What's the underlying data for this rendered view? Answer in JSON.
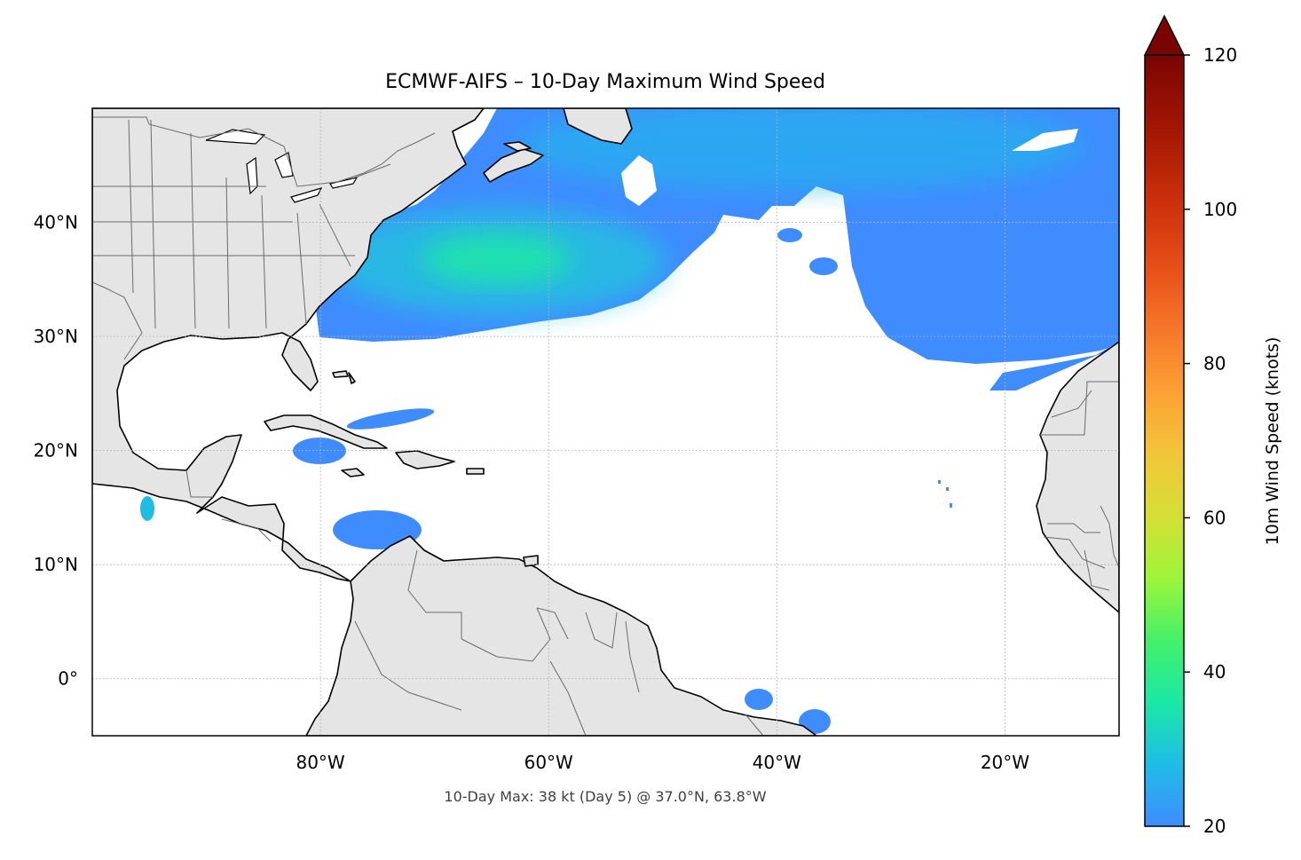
{
  "title": "ECMWF-AIFS – 10-Day Maximum Wind Speed",
  "footer": "10-Day Max: 38 kt (Day 5) @ 37.0°N, 63.8°W",
  "map": {
    "lon_range": [
      -100,
      -10
    ],
    "lat_range": [
      -5,
      50
    ],
    "x_ticks": [
      {
        "value": -80,
        "label": "80°W"
      },
      {
        "value": -60,
        "label": "60°W"
      },
      {
        "value": -40,
        "label": "40°W"
      },
      {
        "value": -20,
        "label": "20°W"
      }
    ],
    "y_ticks": [
      {
        "value": 40,
        "label": "40°N"
      },
      {
        "value": 30,
        "label": "30°N"
      },
      {
        "value": 20,
        "label": "20°N"
      },
      {
        "value": 10,
        "label": "10°N"
      },
      {
        "value": 0,
        "label": "0°"
      }
    ],
    "gridlines": true,
    "land_color": "#e5e5e5",
    "ocean_color": "#ffffff",
    "coastline_color": "#000000",
    "border_color": "#6b6b6b"
  },
  "colorbar": {
    "label": "10m Wind Speed (knots)",
    "range": [
      20,
      120
    ],
    "extend": "max",
    "ticks": [
      {
        "value": 20,
        "label": "20"
      },
      {
        "value": 40,
        "label": "40"
      },
      {
        "value": 60,
        "label": "60"
      },
      {
        "value": 80,
        "label": "80"
      },
      {
        "value": 100,
        "label": "100"
      },
      {
        "value": 120,
        "label": "120"
      }
    ],
    "colors": [
      {
        "value": 20,
        "color": "#3f8cff"
      },
      {
        "value": 28,
        "color": "#1fbde6"
      },
      {
        "value": 36,
        "color": "#1be8a6"
      },
      {
        "value": 44,
        "color": "#44f06a"
      },
      {
        "value": 52,
        "color": "#9cf53a"
      },
      {
        "value": 60,
        "color": "#d4e035"
      },
      {
        "value": 68,
        "color": "#f2c63a"
      },
      {
        "value": 76,
        "color": "#fca235"
      },
      {
        "value": 84,
        "color": "#f7782a"
      },
      {
        "value": 92,
        "color": "#e85118"
      },
      {
        "value": 100,
        "color": "#cf330c"
      },
      {
        "value": 110,
        "color": "#a51704"
      },
      {
        "value": 120,
        "color": "#7a0403"
      }
    ]
  }
}
